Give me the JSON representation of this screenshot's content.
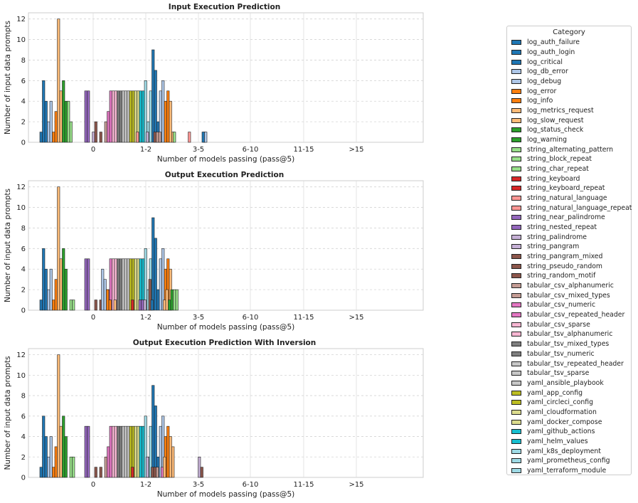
{
  "legend": {
    "title": "Category",
    "items": [
      {
        "name": "log_auth_failure",
        "color": "#1f77b4"
      },
      {
        "name": "log_auth_login",
        "color": "#1f77b4"
      },
      {
        "name": "log_critical",
        "color": "#1f77b4"
      },
      {
        "name": "log_db_error",
        "color": "#aec7e8"
      },
      {
        "name": "log_debug",
        "color": "#aec7e8"
      },
      {
        "name": "log_error",
        "color": "#ff7f0e"
      },
      {
        "name": "log_info",
        "color": "#ff7f0e"
      },
      {
        "name": "log_metrics_request",
        "color": "#ffbb78"
      },
      {
        "name": "log_slow_request",
        "color": "#ffbb78"
      },
      {
        "name": "log_status_check",
        "color": "#2ca02c"
      },
      {
        "name": "log_warning",
        "color": "#2ca02c"
      },
      {
        "name": "string_alternating_pattern",
        "color": "#98df8a"
      },
      {
        "name": "string_block_repeat",
        "color": "#98df8a"
      },
      {
        "name": "string_char_repeat",
        "color": "#98df8a"
      },
      {
        "name": "string_keyboard",
        "color": "#d62728"
      },
      {
        "name": "string_keyboard_repeat",
        "color": "#d62728"
      },
      {
        "name": "string_natural_language",
        "color": "#ff9896"
      },
      {
        "name": "string_natural_language_repeat",
        "color": "#ff9896"
      },
      {
        "name": "string_near_palindrome",
        "color": "#9467bd"
      },
      {
        "name": "string_nested_repeat",
        "color": "#9467bd"
      },
      {
        "name": "string_palindrome",
        "color": "#c5b0d5"
      },
      {
        "name": "string_pangram",
        "color": "#c5b0d5"
      },
      {
        "name": "string_pangram_mixed",
        "color": "#8c564b"
      },
      {
        "name": "string_pseudo_random",
        "color": "#8c564b"
      },
      {
        "name": "string_random_motif",
        "color": "#8c564b"
      },
      {
        "name": "tabular_csv_alphanumeric",
        "color": "#c49c94"
      },
      {
        "name": "tabular_csv_mixed_types",
        "color": "#c49c94"
      },
      {
        "name": "tabular_csv_numeric",
        "color": "#e377c2"
      },
      {
        "name": "tabular_csv_repeated_header",
        "color": "#e377c2"
      },
      {
        "name": "tabular_csv_sparse",
        "color": "#f7b6d2"
      },
      {
        "name": "tabular_tsv_alphanumeric",
        "color": "#f7b6d2"
      },
      {
        "name": "tabular_tsv_mixed_types",
        "color": "#7f7f7f"
      },
      {
        "name": "tabular_tsv_numeric",
        "color": "#7f7f7f"
      },
      {
        "name": "tabular_tsv_repeated_header",
        "color": "#c7c7c7"
      },
      {
        "name": "tabular_tsv_sparse",
        "color": "#c7c7c7"
      },
      {
        "name": "yaml_ansible_playbook",
        "color": "#c7c7c7"
      },
      {
        "name": "yaml_app_config",
        "color": "#bcbd22"
      },
      {
        "name": "yaml_circleci_config",
        "color": "#bcbd22"
      },
      {
        "name": "yaml_cloudformation",
        "color": "#dbdb8d"
      },
      {
        "name": "yaml_docker_compose",
        "color": "#dbdb8d"
      },
      {
        "name": "yaml_github_actions",
        "color": "#17becf"
      },
      {
        "name": "yaml_helm_values",
        "color": "#17becf"
      },
      {
        "name": "yaml_k8s_deployment",
        "color": "#9edae5"
      },
      {
        "name": "yaml_prometheus_config",
        "color": "#9edae5"
      },
      {
        "name": "yaml_terraform_module",
        "color": "#9edae5"
      }
    ]
  },
  "chart_data": [
    {
      "type": "bar",
      "title": "Input Execution Prediction",
      "xlabel": "Number of models passing (pass@5)",
      "ylabel": "Number of input data prompts",
      "categories": [
        "0",
        "1-2",
        "3-5",
        "6-10",
        "11-15",
        ">15"
      ],
      "ylim": [
        0,
        12.6
      ],
      "yticks": [
        0,
        2,
        4,
        6,
        8,
        10,
        12
      ],
      "grid": true,
      "values": [
        [
          1,
          6,
          4,
          2,
          4,
          1,
          3,
          12,
          5,
          6,
          4,
          4,
          2,
          0,
          0,
          0,
          0,
          0,
          5,
          5,
          0,
          1,
          2,
          0,
          1,
          0,
          2,
          3,
          5,
          5,
          5,
          5,
          5,
          5,
          5,
          5,
          5,
          5,
          5,
          5,
          5,
          5,
          6,
          2,
          5,
          9,
          7,
          2,
          5,
          6,
          4,
          5,
          4,
          1
        ],
        [
          0,
          0,
          0,
          0,
          0,
          0,
          0,
          0,
          0,
          0,
          0,
          0,
          0,
          0,
          0,
          0,
          0,
          1,
          0,
          0,
          0,
          1,
          0,
          0,
          1,
          1,
          1,
          0,
          0
        ],
        [
          0,
          0,
          0,
          0,
          0,
          0,
          0,
          0,
          0,
          0,
          0,
          1,
          0,
          0,
          0,
          0,
          0,
          1,
          0,
          0,
          0,
          0,
          0,
          1,
          0,
          0,
          0,
          0,
          0
        ],
        [
          0,
          0,
          1,
          1,
          0
        ],
        [
          0,
          0,
          0,
          0,
          0
        ],
        [
          0,
          0,
          0,
          0,
          0
        ]
      ]
    },
    {
      "type": "bar",
      "title": "Output Execution Prediction",
      "xlabel": "Number of models passing (pass@5)",
      "ylabel": "Number of input data prompts",
      "categories": [
        "0",
        "1-2",
        "3-5",
        "6-10",
        "11-15",
        ">15"
      ],
      "ylim": [
        0,
        12.6
      ],
      "yticks": [
        0,
        2,
        4,
        6,
        8,
        10,
        12
      ],
      "grid": true,
      "values": [
        [
          1,
          6,
          4,
          2,
          4,
          1,
          3,
          12,
          5,
          6,
          4,
          0,
          1,
          1,
          0,
          0,
          0,
          0,
          5,
          5,
          0,
          0,
          1,
          0,
          1,
          0,
          2,
          2,
          5,
          5,
          5,
          5,
          5,
          5,
          5,
          5,
          5,
          5,
          5,
          5,
          5,
          5,
          6,
          2,
          5,
          9,
          7,
          2,
          5,
          6,
          4,
          5,
          4,
          0
        ],
        [
          0,
          0,
          0,
          4,
          3,
          2,
          1,
          0,
          1,
          0,
          0,
          0,
          0,
          0,
          0,
          1,
          0,
          0,
          1,
          1,
          1,
          0,
          3
        ],
        [
          0,
          0,
          1,
          0,
          0,
          0,
          0,
          1,
          2,
          1,
          2,
          2,
          2,
          0
        ],
        [
          0,
          0,
          0,
          0,
          0
        ],
        [
          0,
          0,
          0,
          0,
          0
        ],
        [
          0,
          0,
          0,
          0,
          0
        ]
      ]
    },
    {
      "type": "bar",
      "title": "Output Execution Prediction With Inversion",
      "xlabel": "Number of models passing (pass@5)",
      "ylabel": "Number of input data prompts",
      "categories": [
        "0",
        "1-2",
        "3-5",
        "6-10",
        "11-15",
        ">15"
      ],
      "ylim": [
        0,
        12.6
      ],
      "yticks": [
        0,
        2,
        4,
        6,
        8,
        10,
        12
      ],
      "grid": true,
      "values": [
        [
          1,
          6,
          4,
          2,
          4,
          1,
          3,
          12,
          5,
          6,
          4,
          0,
          2,
          2,
          0,
          0,
          0,
          0,
          5,
          5,
          0,
          0,
          1,
          0,
          1,
          0,
          2,
          3,
          5,
          5,
          5,
          5,
          5,
          5,
          5,
          5,
          5,
          5,
          5,
          5,
          5,
          5,
          6,
          2,
          5,
          9,
          7,
          2,
          5,
          6,
          4,
          5,
          4,
          3
        ],
        [
          0,
          0,
          0,
          0,
          0,
          0,
          0,
          0,
          0,
          0,
          0,
          0,
          0,
          0,
          0,
          1,
          0,
          0,
          0,
          0,
          0,
          2,
          0,
          1,
          1,
          1,
          0,
          1,
          0
        ],
        [
          0,
          0,
          0,
          0,
          0,
          0,
          0,
          2,
          0,
          0,
          0,
          0,
          0,
          0,
          0,
          0,
          0,
          0,
          0,
          0,
          0,
          2,
          1
        ],
        [
          0,
          0,
          0,
          0,
          0
        ],
        [
          0,
          0,
          0,
          0,
          0
        ],
        [
          0,
          0,
          0,
          0,
          0
        ]
      ]
    }
  ]
}
